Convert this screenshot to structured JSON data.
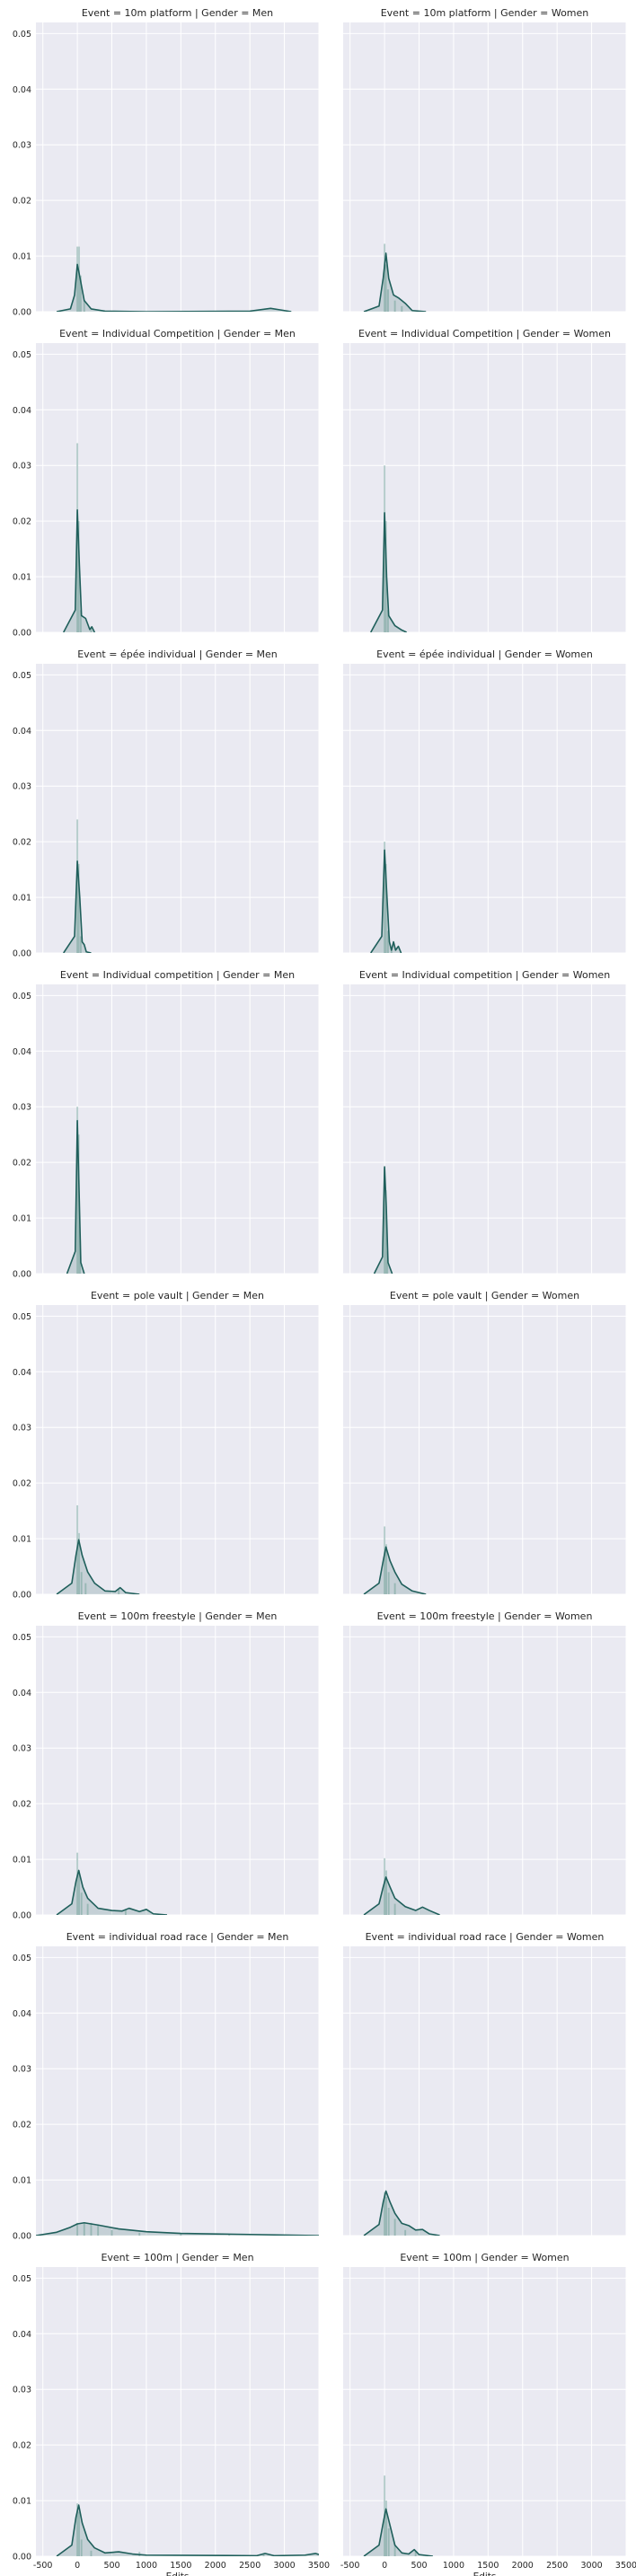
{
  "chart_data": {
    "type": "facet-histogram-kde",
    "xlabel": "Edits",
    "ylabel": "",
    "xlim": [
      -600,
      3500
    ],
    "ylim": [
      0,
      0.052
    ],
    "x_ticks": [
      -500,
      0,
      500,
      1000,
      1500,
      2000,
      2500,
      3000,
      3500
    ],
    "y_ticks": [
      0.0,
      0.01,
      0.02,
      0.03,
      0.04,
      0.05
    ],
    "grid": true,
    "colors": {
      "kde": "#1f5f5b",
      "hist": "#a9c6c3",
      "background": "#eaeaf2",
      "grid": "#ffffff"
    },
    "columns": [
      "Men",
      "Women"
    ],
    "panels": [
      {
        "title": "Event = 10m platform | Gender = Men",
        "hist": [
          [
            0,
            0.0117
          ],
          [
            25,
            0.0117
          ],
          [
            50,
            0.0065
          ],
          [
            100,
            0.002
          ]
        ],
        "kde": [
          [
            -300,
            0
          ],
          [
            -100,
            0.0005
          ],
          [
            -40,
            0.003
          ],
          [
            0,
            0.0085
          ],
          [
            40,
            0.006
          ],
          [
            100,
            0.002
          ],
          [
            200,
            0.0005
          ],
          [
            400,
            0.0001
          ],
          [
            1000,
            0
          ],
          [
            2500,
            0.0001
          ],
          [
            2800,
            0.0006
          ],
          [
            2950,
            0.0003
          ],
          [
            3100,
            0
          ]
        ]
      },
      {
        "title": "Event = 10m platform | Gender = Women",
        "hist": [
          [
            0,
            0.0122
          ],
          [
            20,
            0.0085
          ],
          [
            50,
            0.004
          ],
          [
            150,
            0.002
          ],
          [
            250,
            0.001
          ]
        ],
        "kde": [
          [
            -300,
            0
          ],
          [
            -80,
            0.001
          ],
          [
            -20,
            0.006
          ],
          [
            20,
            0.0105
          ],
          [
            60,
            0.006
          ],
          [
            130,
            0.003
          ],
          [
            200,
            0.0025
          ],
          [
            300,
            0.0015
          ],
          [
            400,
            0.0002
          ],
          [
            600,
            0
          ]
        ]
      },
      {
        "title": "Event = Individual Competition | Gender = Men",
        "hist": [
          [
            0,
            0.034
          ],
          [
            20,
            0.02
          ],
          [
            50,
            0.004
          ],
          [
            200,
            0.001
          ]
        ],
        "kde": [
          [
            -200,
            0
          ],
          [
            -30,
            0.004
          ],
          [
            0,
            0.022
          ],
          [
            30,
            0.012
          ],
          [
            60,
            0.003
          ],
          [
            120,
            0.0025
          ],
          [
            180,
            0.0005
          ],
          [
            210,
            0.001
          ],
          [
            250,
            0
          ]
        ]
      },
      {
        "title": "Event = Individual Competition | Gender = Women",
        "hist": [
          [
            0,
            0.03
          ],
          [
            20,
            0.02
          ],
          [
            50,
            0.004
          ]
        ],
        "kde": [
          [
            -200,
            0
          ],
          [
            -30,
            0.004
          ],
          [
            0,
            0.0215
          ],
          [
            30,
            0.01
          ],
          [
            60,
            0.003
          ],
          [
            150,
            0.0012
          ],
          [
            250,
            0.0004
          ],
          [
            320,
            0
          ]
        ]
      },
      {
        "title": "Event = épée individual | Gender = Men",
        "hist": [
          [
            0,
            0.024
          ],
          [
            20,
            0.016
          ],
          [
            50,
            0.003
          ]
        ],
        "kde": [
          [
            -200,
            0
          ],
          [
            -40,
            0.003
          ],
          [
            0,
            0.0165
          ],
          [
            35,
            0.01
          ],
          [
            70,
            0.002
          ],
          [
            100,
            0.0015
          ],
          [
            130,
            0.0002
          ],
          [
            200,
            0
          ]
        ]
      },
      {
        "title": "Event = épée individual | Gender = Women",
        "hist": [
          [
            0,
            0.02
          ],
          [
            20,
            0.016
          ],
          [
            50,
            0.004
          ],
          [
            100,
            0.001
          ]
        ],
        "kde": [
          [
            -200,
            0
          ],
          [
            -40,
            0.003
          ],
          [
            0,
            0.0185
          ],
          [
            35,
            0.01
          ],
          [
            70,
            0.002
          ],
          [
            100,
            0.0005
          ],
          [
            130,
            0.002
          ],
          [
            160,
            0.0005
          ],
          [
            200,
            0.0012
          ],
          [
            240,
            0
          ]
        ]
      },
      {
        "title": "Event = Individual competition | Gender = Men",
        "hist": [
          [
            0,
            0.03
          ],
          [
            20,
            0.025
          ],
          [
            40,
            0.006
          ]
        ],
        "kde": [
          [
            -150,
            0
          ],
          [
            -30,
            0.004
          ],
          [
            0,
            0.0275
          ],
          [
            25,
            0.015
          ],
          [
            50,
            0.002
          ],
          [
            100,
            0
          ]
        ]
      },
      {
        "title": "Event = Individual competition | Gender = Women",
        "hist": [
          [
            0,
            0.019
          ],
          [
            20,
            0.015
          ],
          [
            40,
            0.004
          ]
        ],
        "kde": [
          [
            -150,
            0
          ],
          [
            -30,
            0.003
          ],
          [
            0,
            0.0192
          ],
          [
            25,
            0.012
          ],
          [
            50,
            0.002
          ],
          [
            110,
            0
          ]
        ]
      },
      {
        "title": "Event = pole vault | Gender = Men",
        "hist": [
          [
            0,
            0.016
          ],
          [
            25,
            0.011
          ],
          [
            60,
            0.004
          ],
          [
            120,
            0.002
          ],
          [
            600,
            0.001
          ]
        ],
        "kde": [
          [
            -300,
            0
          ],
          [
            -80,
            0.002
          ],
          [
            -20,
            0.007
          ],
          [
            20,
            0.0098
          ],
          [
            70,
            0.007
          ],
          [
            150,
            0.004
          ],
          [
            250,
            0.002
          ],
          [
            400,
            0.0006
          ],
          [
            550,
            0.0005
          ],
          [
            620,
            0.0012
          ],
          [
            700,
            0.0003
          ],
          [
            900,
            0
          ]
        ]
      },
      {
        "title": "Event = pole vault | Gender = Women",
        "hist": [
          [
            0,
            0.0122
          ],
          [
            25,
            0.009
          ],
          [
            60,
            0.004
          ],
          [
            150,
            0.002
          ]
        ],
        "kde": [
          [
            -300,
            0
          ],
          [
            -80,
            0.002
          ],
          [
            -20,
            0.006
          ],
          [
            20,
            0.0085
          ],
          [
            80,
            0.006
          ],
          [
            150,
            0.004
          ],
          [
            250,
            0.0018
          ],
          [
            400,
            0.0006
          ],
          [
            600,
            0
          ]
        ]
      },
      {
        "title": "Event = 100m freestyle | Gender = Men",
        "hist": [
          [
            0,
            0.0112
          ],
          [
            25,
            0.008
          ],
          [
            60,
            0.004
          ],
          [
            150,
            0.002
          ],
          [
            700,
            0.001
          ]
        ],
        "kde": [
          [
            -300,
            0
          ],
          [
            -80,
            0.002
          ],
          [
            -20,
            0.006
          ],
          [
            20,
            0.008
          ],
          [
            80,
            0.005
          ],
          [
            150,
            0.003
          ],
          [
            300,
            0.0012
          ],
          [
            500,
            0.0008
          ],
          [
            650,
            0.0007
          ],
          [
            750,
            0.0012
          ],
          [
            900,
            0.0006
          ],
          [
            1000,
            0.001
          ],
          [
            1100,
            0.0002
          ],
          [
            1300,
            0
          ]
        ]
      },
      {
        "title": "Event = 100m freestyle | Gender = Women",
        "hist": [
          [
            0,
            0.0102
          ],
          [
            25,
            0.008
          ],
          [
            60,
            0.004
          ],
          [
            150,
            0.002
          ]
        ],
        "kde": [
          [
            -300,
            0
          ],
          [
            -80,
            0.002
          ],
          [
            -20,
            0.005
          ],
          [
            20,
            0.0068
          ],
          [
            80,
            0.005
          ],
          [
            150,
            0.003
          ],
          [
            300,
            0.0015
          ],
          [
            450,
            0.0008
          ],
          [
            550,
            0.0014
          ],
          [
            650,
            0.0008
          ],
          [
            800,
            0
          ]
        ]
      },
      {
        "title": "Event = individual road race | Gender = Men",
        "hist": [
          [
            0,
            0.0023
          ],
          [
            100,
            0.0023
          ],
          [
            200,
            0.0023
          ],
          [
            300,
            0.0018
          ],
          [
            500,
            0.001
          ],
          [
            900,
            0.0005
          ],
          [
            1500,
            0.0003
          ],
          [
            2200,
            0.0002
          ]
        ],
        "kde": [
          [
            -600,
            0
          ],
          [
            -300,
            0.0006
          ],
          [
            -100,
            0.0015
          ],
          [
            0,
            0.0021
          ],
          [
            100,
            0.0023
          ],
          [
            300,
            0.0019
          ],
          [
            600,
            0.0012
          ],
          [
            1000,
            0.0007
          ],
          [
            1500,
            0.0004
          ],
          [
            2000,
            0.0003
          ],
          [
            2500,
            0.0002
          ],
          [
            3000,
            0.0001
          ],
          [
            3500,
            0
          ]
        ]
      },
      {
        "title": "Event = individual road race | Gender = Women",
        "hist": [
          [
            0,
            0.0078
          ],
          [
            25,
            0.007
          ],
          [
            60,
            0.005
          ],
          [
            150,
            0.003
          ],
          [
            300,
            0.001
          ]
        ],
        "kde": [
          [
            -300,
            0
          ],
          [
            -80,
            0.002
          ],
          [
            -20,
            0.006
          ],
          [
            20,
            0.008
          ],
          [
            80,
            0.006
          ],
          [
            150,
            0.004
          ],
          [
            250,
            0.0022
          ],
          [
            350,
            0.0018
          ],
          [
            450,
            0.001
          ],
          [
            550,
            0.0011
          ],
          [
            650,
            0.0003
          ],
          [
            800,
            0
          ]
        ]
      },
      {
        "title": "Event = 100m | Gender = Men",
        "hist": [
          [
            0,
            0.0095
          ],
          [
            25,
            0.008
          ],
          [
            60,
            0.003
          ],
          [
            200,
            0.001
          ],
          [
            900,
            0.0008
          ],
          [
            2700,
            0.0005
          ]
        ],
        "kde": [
          [
            -300,
            0
          ],
          [
            -80,
            0.002
          ],
          [
            -20,
            0.007
          ],
          [
            20,
            0.0092
          ],
          [
            70,
            0.006
          ],
          [
            150,
            0.003
          ],
          [
            250,
            0.0015
          ],
          [
            400,
            0.0006
          ],
          [
            600,
            0.0008
          ],
          [
            800,
            0.0004
          ],
          [
            1000,
            0.0002
          ],
          [
            2600,
            0.0001
          ],
          [
            2720,
            0.0005
          ],
          [
            2850,
            0.0001
          ],
          [
            3300,
            0.0002
          ],
          [
            3450,
            0.0005
          ],
          [
            3500,
            0.0003
          ]
        ]
      },
      {
        "title": "Event = 100m | Gender = Women",
        "hist": [
          [
            0,
            0.0145
          ],
          [
            25,
            0.01
          ],
          [
            60,
            0.005
          ],
          [
            150,
            0.002
          ],
          [
            450,
            0.001
          ]
        ],
        "kde": [
          [
            -300,
            0
          ],
          [
            -80,
            0.002
          ],
          [
            -20,
            0.006
          ],
          [
            20,
            0.0085
          ],
          [
            70,
            0.006
          ],
          [
            150,
            0.002
          ],
          [
            250,
            0.0006
          ],
          [
            350,
            0.0004
          ],
          [
            430,
            0.0012
          ],
          [
            500,
            0.0003
          ],
          [
            700,
            0
          ]
        ]
      }
    ]
  }
}
